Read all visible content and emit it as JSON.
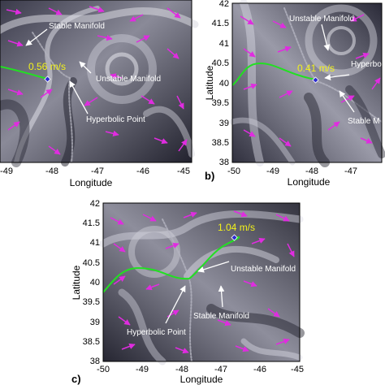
{
  "figure": {
    "panels": [
      {
        "letter": "",
        "speed": "0.56 m/s",
        "x_ticks": [
          "-49",
          "-48",
          "-47",
          "-46",
          "-45"
        ],
        "y_ticks": [],
        "xlabel": "Longitude",
        "ylabel": "",
        "annotations": [
          "Stable Manifold",
          "Unstable Manifold",
          "Hyperbolic Point"
        ]
      },
      {
        "letter": "b)",
        "speed": "0.41 m/s",
        "x_ticks": [
          "-50",
          "-49",
          "-48",
          "-47"
        ],
        "y_ticks": [
          "42",
          "41.5",
          "41",
          "40.5",
          "40",
          "39.5",
          "39",
          "38.5",
          "38"
        ],
        "xlabel": "Longitude",
        "ylabel": "Latitude",
        "annotations": [
          "Unstable Manifold",
          "Hyperbo",
          "Stable M"
        ]
      },
      {
        "letter": "c)",
        "speed": "1.04 m/s",
        "x_ticks": [
          "-50",
          "-49",
          "-48",
          "-47",
          "-46",
          "-45"
        ],
        "y_ticks": [
          "42",
          "41.5",
          "41",
          "40.5",
          "40",
          "39.5",
          "39",
          "38.5",
          "38"
        ],
        "xlabel": "Longitude",
        "ylabel": "Latitude",
        "annotations": [
          "Unstable Manifold",
          "Stable Manifold",
          "Hyperbolic Point"
        ]
      }
    ],
    "colors": {
      "arrow": "#e02ce0",
      "trajectory": "#22e022",
      "speed_label": "#f2f21a",
      "annotation": "#ffffff",
      "marker": "#2b2bd0"
    }
  }
}
